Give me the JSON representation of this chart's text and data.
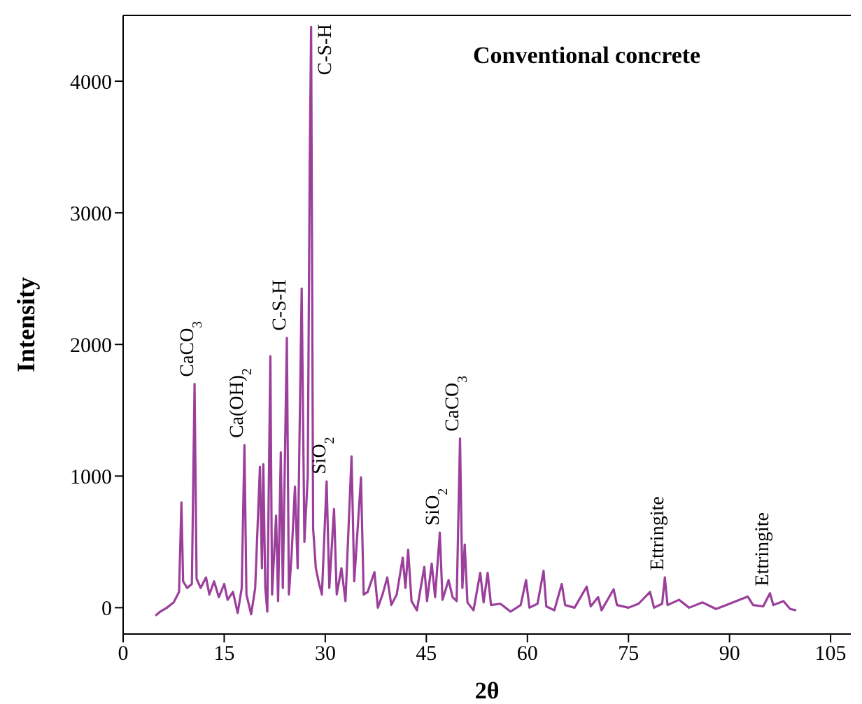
{
  "chart_data": {
    "type": "line",
    "title": "Conventional concrete",
    "xlabel": "2θ",
    "ylabel": "Intensity",
    "xlim": [
      0,
      108
    ],
    "xticks": [
      0,
      15,
      30,
      45,
      60,
      75,
      90,
      105
    ],
    "ylim": [
      -200,
      4500
    ],
    "yticks": [
      0,
      1000,
      2000,
      3000,
      4000
    ],
    "grid": false,
    "marker": "none",
    "line_style": "solid",
    "annotations": [
      {
        "text": "CaCO$_{3}$",
        "x": 10.6,
        "y": 1700
      },
      {
        "text": "Ca(OH)$_{2}$",
        "x": 18.0,
        "y": 1235
      },
      {
        "text": "C-S-H",
        "x": 24.3,
        "y": 2050
      },
      {
        "text": "C-S-H",
        "x": 27.9,
        "y": 4413
      },
      {
        "text": "SiO$_{2}$",
        "x": 30.2,
        "y": 960
      },
      {
        "text": "SiO$_{2}$",
        "x": 47.0,
        "y": 570
      },
      {
        "text": "CaCO$_{3}$",
        "x": 50.0,
        "y": 1285
      },
      {
        "text": "Ettringite",
        "x": 80.4,
        "y": 230
      },
      {
        "text": "Ettringite",
        "x": 96.0,
        "y": 110
      }
    ],
    "series": [
      {
        "color": "#9b3f9b",
        "x": [
          4.8,
          5.5,
          6.5,
          7.5,
          8.3,
          8.65,
          8.9,
          9.5,
          10.2,
          10.6,
          10.9,
          11.5,
          12.3,
          12.8,
          13.5,
          14.2,
          15.0,
          15.5,
          16.3,
          17.0,
          17.6,
          18.0,
          18.3,
          19.0,
          19.6,
          20.3,
          20.6,
          20.8,
          21.1,
          21.4,
          21.85,
          22.1,
          22.7,
          23.0,
          23.4,
          23.7,
          24.3,
          24.6,
          25.0,
          25.5,
          25.9,
          26.5,
          26.9,
          27.4,
          27.7,
          27.9,
          28.2,
          28.6,
          29.0,
          29.5,
          30.2,
          30.6,
          31.3,
          31.7,
          32.4,
          33.0,
          33.9,
          34.3,
          35.3,
          35.7,
          36.3,
          37.3,
          37.8,
          38.5,
          39.2,
          39.8,
          40.6,
          41.5,
          41.9,
          42.3,
          42.8,
          43.6,
          44.7,
          45.1,
          45.8,
          46.3,
          47.0,
          47.4,
          48.3,
          48.9,
          49.5,
          50.0,
          50.35,
          50.7,
          51.1,
          52.0,
          53.0,
          53.5,
          54.1,
          54.6,
          56.0,
          57.5,
          59.0,
          59.8,
          60.3,
          61.5,
          62.4,
          62.8,
          64.0,
          65.1,
          65.6,
          67.0,
          68.8,
          69.4,
          70.5,
          71.0,
          72.8,
          73.3,
          75.0,
          76.5,
          78.2,
          78.8,
          80.0,
          80.4,
          80.8,
          82.5,
          84.0,
          86.0,
          88.0,
          90.0,
          92.7,
          93.5,
          95.0,
          96.0,
          96.5,
          98.0,
          99.0,
          99.9
        ],
        "values": [
          -60,
          -30,
          0,
          40,
          120,
          800,
          200,
          150,
          180,
          1700,
          220,
          150,
          230,
          100,
          200,
          80,
          180,
          60,
          120,
          -40,
          150,
          1235,
          100,
          -50,
          150,
          1070,
          300,
          1090,
          150,
          -30,
          1910,
          100,
          700,
          50,
          1180,
          150,
          2050,
          100,
          400,
          920,
          300,
          2425,
          500,
          1000,
          3410,
          4413,
          600,
          300,
          200,
          100,
          960,
          150,
          750,
          100,
          300,
          50,
          1150,
          200,
          990,
          100,
          120,
          270,
          0,
          100,
          230,
          20,
          100,
          380,
          150,
          440,
          50,
          -20,
          310,
          50,
          335,
          80,
          570,
          60,
          210,
          80,
          50,
          1285,
          150,
          480,
          40,
          -20,
          265,
          40,
          265,
          20,
          30,
          -30,
          20,
          210,
          0,
          30,
          280,
          10,
          -20,
          180,
          20,
          0,
          160,
          10,
          80,
          -20,
          140,
          20,
          0,
          30,
          120,
          0,
          30,
          230,
          20,
          60,
          0,
          40,
          -10,
          30,
          85,
          20,
          10,
          110,
          20,
          50,
          -10,
          -20
        ]
      }
    ]
  }
}
